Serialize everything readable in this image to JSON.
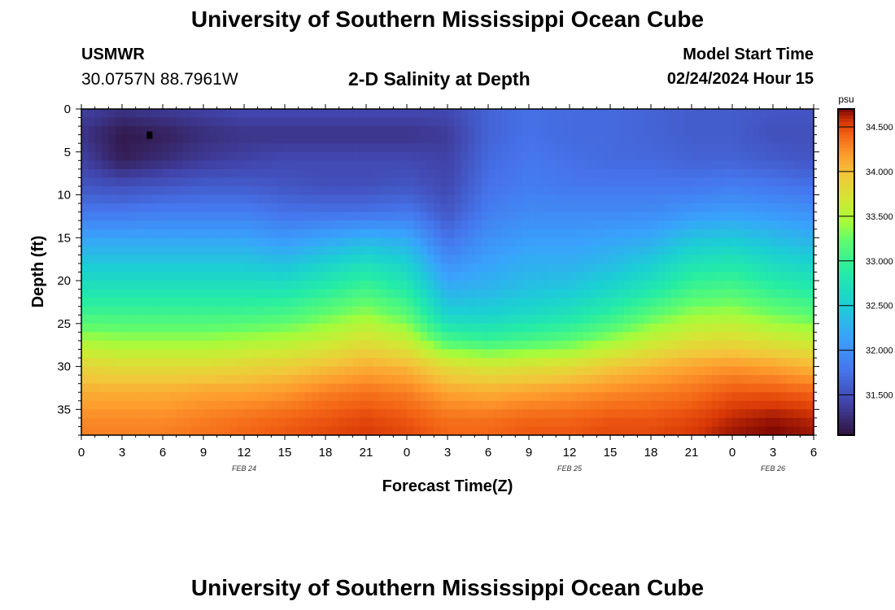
{
  "header": {
    "title": "University of Southern Mississippi Ocean Cube",
    "station": "USMWR",
    "coords": "30.0757N  88.7961W",
    "subtitle": "2-D Salinity at Depth",
    "model_start_label": "Model Start Time",
    "model_start_value": "02/24/2024 Hour 15"
  },
  "footer": {
    "title": "University of Southern Mississippi Ocean Cube"
  },
  "chart_data": {
    "type": "heatmap",
    "title": "2-D Salinity at Depth",
    "xlabel": "Forecast Time(Z)",
    "ylabel": "Depth (ft)",
    "x_tick_labels": [
      "0",
      "3",
      "6",
      "9",
      "12",
      "15",
      "18",
      "21",
      "0",
      "3",
      "6",
      "9",
      "12",
      "15",
      "18",
      "21",
      "0",
      "3",
      "6"
    ],
    "x_range_hours": [
      0,
      54
    ],
    "date_labels": [
      {
        "label": "FEB 24",
        "hour": 12
      },
      {
        "label": "FEB 25",
        "hour": 36
      },
      {
        "label": "FEB 26",
        "hour": 51
      }
    ],
    "y_ticks": [
      0,
      5,
      10,
      15,
      20,
      25,
      30,
      35
    ],
    "y_range_ft": [
      0,
      38
    ],
    "y_inverted": true,
    "colorbar": {
      "unit": "psu",
      "min": 31.05,
      "max": 34.7,
      "tick_values": [
        31.5,
        32.0,
        32.5,
        33.0,
        33.5,
        34.0,
        34.5
      ],
      "tick_labels": [
        "31.500",
        "32.000",
        "32.500",
        "33.000",
        "33.500",
        "34.000",
        "34.500"
      ],
      "colormap": "turbo"
    },
    "salinity_grid": {
      "time_hours": [
        0,
        3,
        6,
        9,
        12,
        15,
        18,
        21,
        24,
        27,
        30,
        33,
        36,
        39,
        42,
        45,
        48,
        51,
        54
      ],
      "depth_ft": [
        0,
        3,
        6,
        9,
        12,
        15,
        18,
        21,
        24,
        27,
        30,
        33,
        36,
        38
      ],
      "values": [
        [
          31.4,
          31.3,
          31.35,
          31.4,
          31.45,
          31.45,
          31.45,
          31.45,
          31.45,
          31.45,
          31.65,
          31.75,
          31.7,
          31.7,
          31.65,
          31.6,
          31.6,
          31.55,
          31.55
        ],
        [
          31.3,
          31.1,
          31.15,
          31.25,
          31.3,
          31.3,
          31.3,
          31.3,
          31.3,
          31.35,
          31.65,
          31.75,
          31.7,
          31.7,
          31.65,
          31.6,
          31.6,
          31.5,
          31.5
        ],
        [
          31.4,
          31.15,
          31.25,
          31.35,
          31.4,
          31.45,
          31.45,
          31.45,
          31.45,
          31.4,
          31.7,
          31.8,
          31.75,
          31.7,
          31.7,
          31.65,
          31.65,
          31.6,
          31.55
        ],
        [
          31.55,
          31.5,
          31.55,
          31.6,
          31.6,
          31.55,
          31.5,
          31.5,
          31.55,
          31.45,
          31.75,
          31.85,
          31.8,
          31.8,
          31.8,
          31.8,
          31.85,
          31.8,
          31.75
        ],
        [
          31.8,
          31.8,
          31.85,
          31.85,
          31.85,
          31.75,
          31.75,
          31.75,
          31.8,
          31.55,
          31.85,
          31.95,
          31.95,
          31.95,
          31.95,
          32.05,
          32.1,
          32.05,
          32.0
        ],
        [
          32.15,
          32.15,
          32.15,
          32.15,
          32.15,
          32.05,
          32.15,
          32.25,
          32.2,
          31.75,
          32.0,
          32.1,
          32.1,
          32.15,
          32.2,
          32.4,
          32.45,
          32.35,
          32.25
        ],
        [
          32.45,
          32.45,
          32.45,
          32.45,
          32.45,
          32.4,
          32.55,
          32.7,
          32.55,
          32.0,
          32.15,
          32.25,
          32.25,
          32.35,
          32.5,
          32.75,
          32.8,
          32.65,
          32.55
        ],
        [
          32.75,
          32.75,
          32.75,
          32.75,
          32.75,
          32.75,
          32.9,
          33.05,
          32.85,
          32.25,
          32.3,
          32.4,
          32.45,
          32.6,
          32.8,
          33.05,
          33.1,
          32.95,
          32.85
        ],
        [
          33.05,
          33.05,
          33.05,
          33.05,
          33.05,
          33.1,
          33.25,
          33.4,
          33.2,
          32.55,
          32.55,
          32.65,
          32.75,
          32.95,
          33.2,
          33.4,
          33.45,
          33.3,
          33.2
        ],
        [
          33.45,
          33.4,
          33.4,
          33.4,
          33.45,
          33.5,
          33.6,
          33.75,
          33.6,
          33.1,
          33.0,
          33.1,
          33.2,
          33.4,
          33.6,
          33.75,
          33.8,
          33.7,
          33.6
        ],
        [
          33.85,
          33.8,
          33.8,
          33.8,
          33.85,
          33.9,
          34.0,
          34.1,
          34.05,
          33.8,
          33.7,
          33.75,
          33.8,
          33.95,
          34.05,
          34.15,
          34.2,
          34.15,
          34.05
        ],
        [
          34.1,
          34.1,
          34.1,
          34.15,
          34.15,
          34.2,
          34.3,
          34.35,
          34.3,
          34.15,
          34.1,
          34.15,
          34.2,
          34.25,
          34.3,
          34.35,
          34.45,
          34.45,
          34.4
        ],
        [
          34.25,
          34.25,
          34.25,
          34.3,
          34.35,
          34.4,
          34.45,
          34.5,
          34.45,
          34.35,
          34.35,
          34.4,
          34.4,
          34.45,
          34.45,
          34.5,
          34.6,
          34.65,
          34.6
        ],
        [
          34.3,
          34.3,
          34.3,
          34.35,
          34.4,
          34.45,
          34.5,
          34.55,
          34.5,
          34.4,
          34.4,
          34.45,
          34.45,
          34.5,
          34.5,
          34.55,
          34.65,
          34.7,
          34.65
        ]
      ]
    },
    "min_marker": {
      "hour": 5,
      "depth_ft": 3
    }
  }
}
